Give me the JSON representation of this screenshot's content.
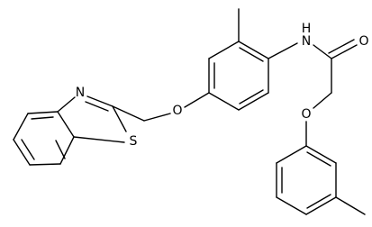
{
  "atoms": [
    {
      "label": "N"
    },
    {
      "label": "S"
    },
    {
      "label": "O"
    },
    {
      "label": "N"
    },
    {
      "label": "H"
    },
    {
      "label": "O"
    },
    {
      "label": "O"
    }
  ]
}
